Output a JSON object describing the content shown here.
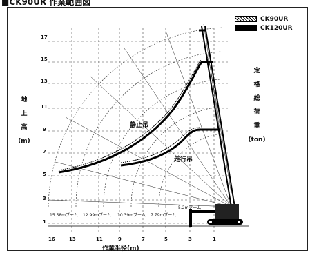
{
  "title": "■CK90UR 作業範囲図",
  "legend": {
    "items": [
      {
        "name": "CK90UR",
        "style": "hatched"
      },
      {
        "name": "CK120UR",
        "style": "solid"
      }
    ]
  },
  "y_axis": {
    "label_chars": [
      "地",
      "上",
      "高",
      "(m)"
    ],
    "ticks": [
      "17",
      "15",
      "13",
      "11",
      "9",
      "7",
      "5",
      "3",
      "1"
    ]
  },
  "x_axis": {
    "label": "作業半径(m)",
    "ticks": [
      "16",
      "13",
      "11",
      "9",
      "7",
      "5",
      "3",
      "1"
    ]
  },
  "right_label_chars": [
    "定",
    "格",
    "総",
    "荷",
    "重",
    "(ton)"
  ],
  "curve_labels": {
    "stationary": "静止吊",
    "traveling": "走行吊"
  },
  "boom_notes": [
    "15.58mブーム",
    "12.99mブーム",
    "10.39mブーム",
    "7.79mブーム",
    "5.2mブーム"
  ],
  "colors": {
    "ink": "#111111",
    "grid": "#444444",
    "background": "#ffffff"
  }
}
